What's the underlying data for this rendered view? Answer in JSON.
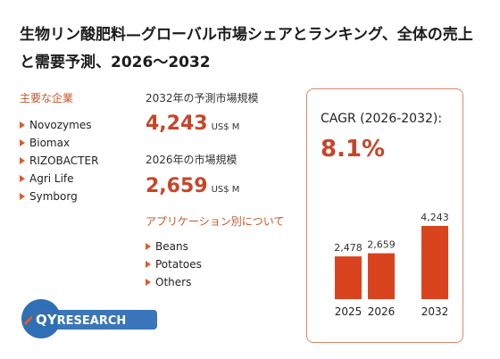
{
  "title": "生物リン酸肥料—グローバル市場シェアとランキング、全体の売上と需要予測、2026～2032",
  "companies_label": "主要な企業",
  "companies": [
    "Novozymes",
    "Biomax",
    "RIZOBACTER",
    "Agri Life",
    "Symborg"
  ],
  "market_2032_label": "2032年の予測市場規模",
  "market_2032_value": "4,243",
  "market_2032_unit": "US$ M",
  "market_2026_label": "2026年の市場規模",
  "market_2026_value": "2,659",
  "market_2026_unit": "US$ M",
  "applications_label": "アプリケーション別について",
  "applications": [
    "Beans",
    "Potatoes",
    "Others"
  ],
  "cagr_label": "CAGR (2026-2032):",
  "cagr_value": "8.1%",
  "logo": {
    "q": "QY",
    "rest": "RESEARCH"
  },
  "colors": {
    "accent": "#c8452a",
    "bar": "#d9441f",
    "card_border": "#d9886b"
  },
  "chart_data": {
    "type": "bar",
    "categories": [
      "2025",
      "2026",
      "2032"
    ],
    "values": [
      2478,
      2659,
      4243
    ],
    "value_labels": [
      "2,478",
      "2,659",
      "4,243"
    ],
    "title": "",
    "xlabel": "",
    "ylabel": "",
    "ylim": [
      0,
      4243
    ]
  }
}
